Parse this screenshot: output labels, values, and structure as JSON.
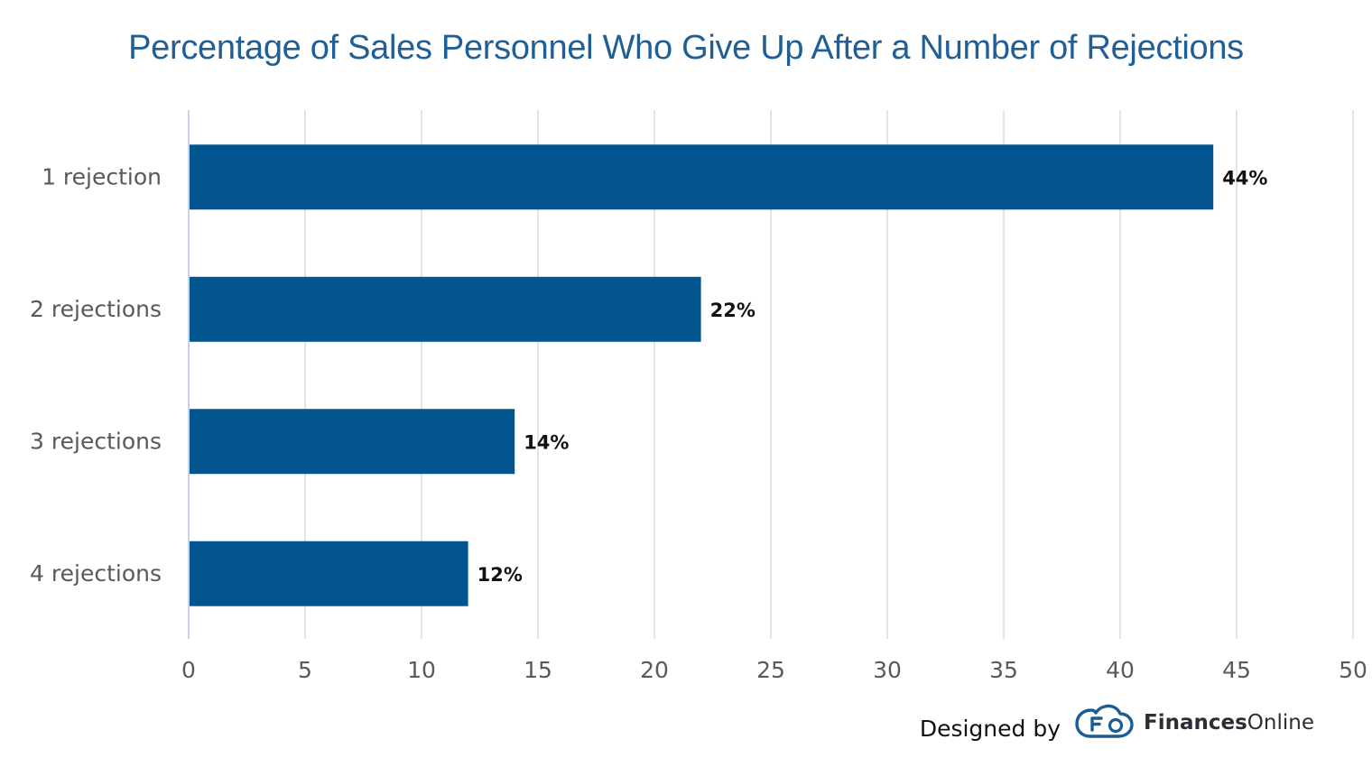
{
  "chart_data": {
    "type": "bar",
    "orientation": "horizontal",
    "title": "Percentage of Sales Personnel Who Give Up After a Number of Rejections",
    "categories": [
      "1 rejection",
      "2 rejections",
      "3 rejections",
      "4 rejections"
    ],
    "values": [
      44,
      22,
      14,
      12
    ],
    "data_labels": [
      "44%",
      "22%",
      "14%",
      "12%"
    ],
    "xlim": [
      0,
      50
    ],
    "xticks": [
      "0",
      "5",
      "10",
      "15",
      "20",
      "25",
      "30",
      "35",
      "40",
      "45",
      "50"
    ],
    "grid": "vertical",
    "bar_color": "#03558f",
    "title_color": "#1f5f96"
  },
  "footer": {
    "designed_by": "Designed by",
    "brand_strong": "Finances",
    "brand_light": "Online"
  }
}
